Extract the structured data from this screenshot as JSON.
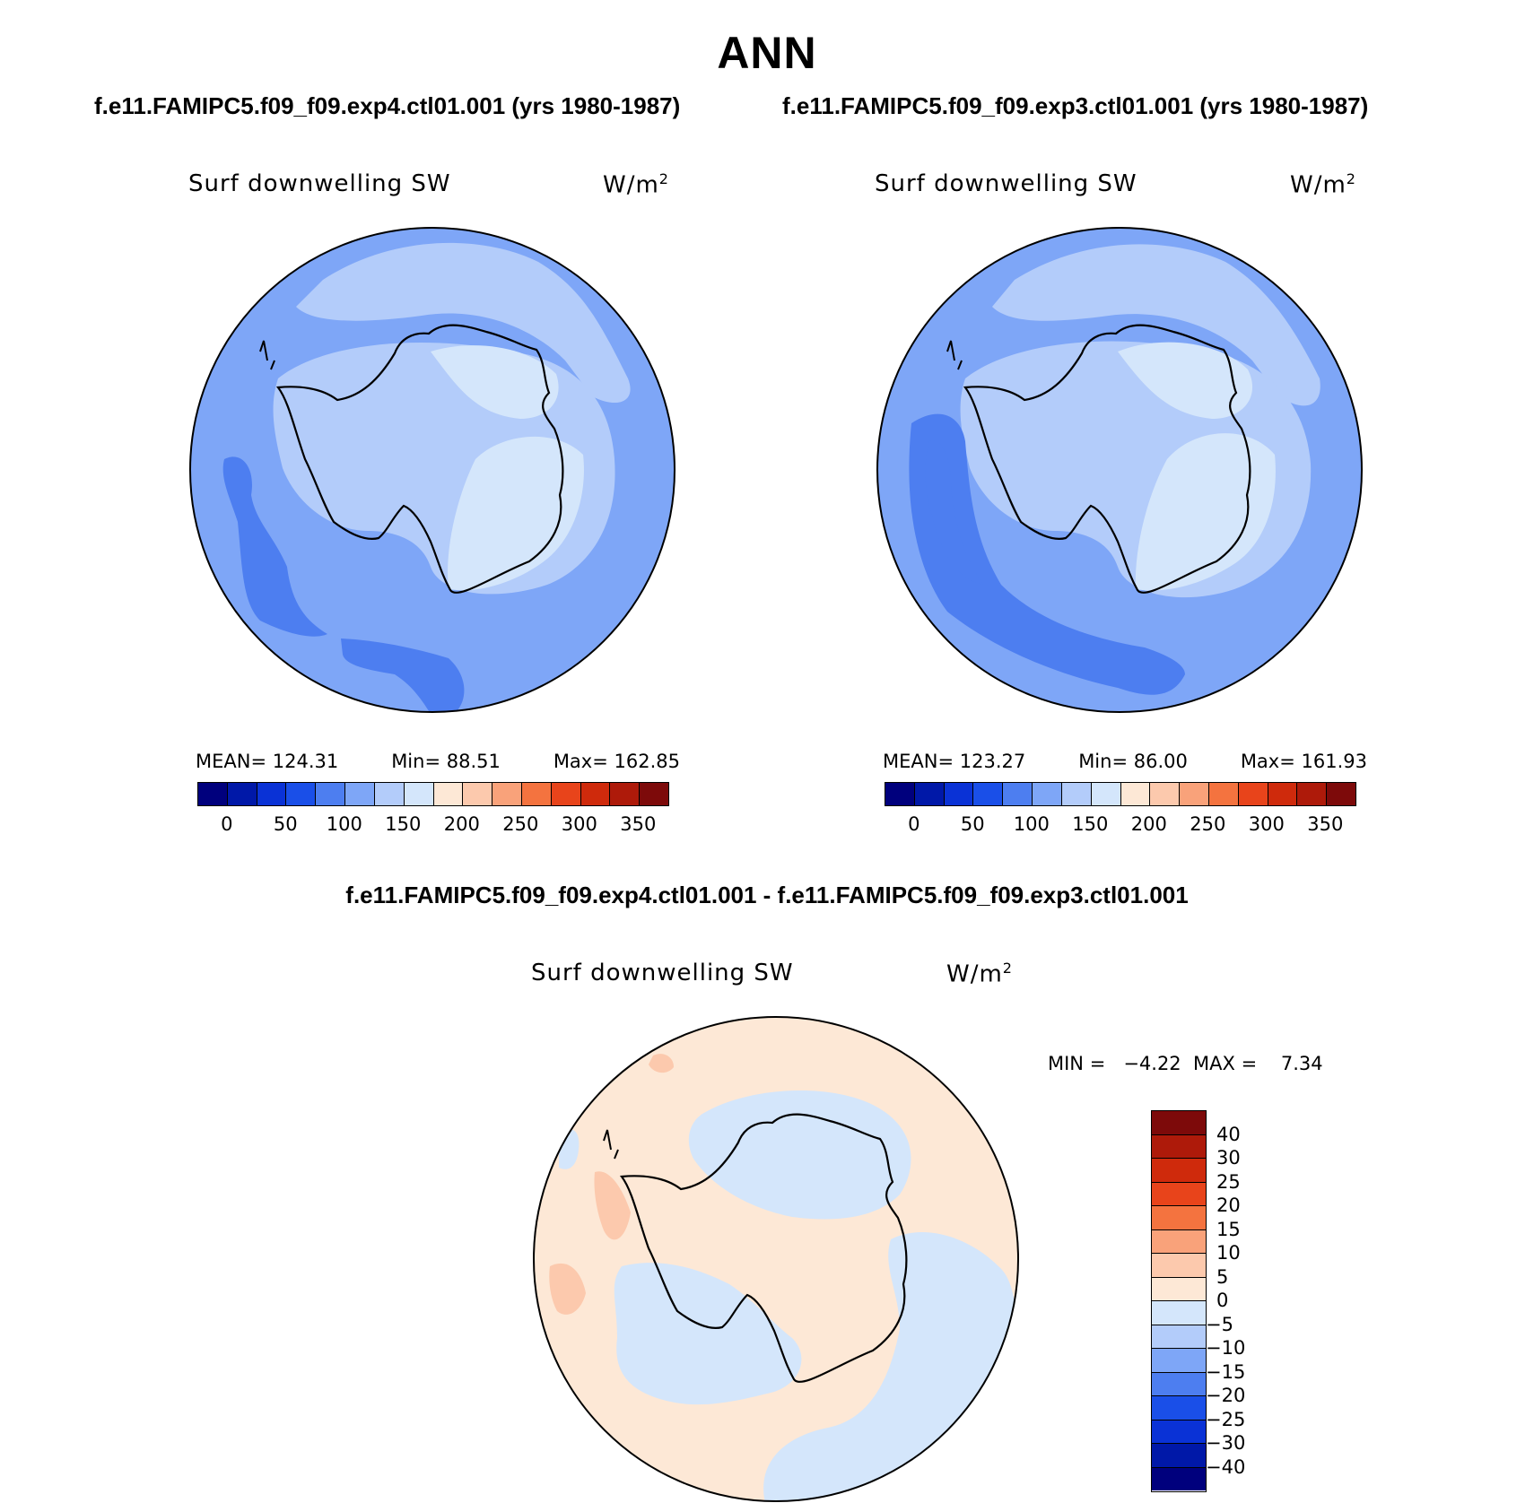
{
  "title": "ANN",
  "panels": [
    {
      "case_title": "f.e11.FAMIPC5.f09_f09.exp4.ctl01.001 (yrs 1980-1987)",
      "variable": "Surf downwelling SW",
      "units": "W/m",
      "units_sup": "2",
      "mean_label": "MEAN=",
      "mean": "124.31",
      "min_label": "Min=",
      "min": "88.51",
      "max_label": "Max=",
      "max": "162.85"
    },
    {
      "case_title": "f.e11.FAMIPC5.f09_f09.exp3.ctl01.001 (yrs 1980-1987)",
      "variable": "Surf downwelling SW",
      "units": "W/m",
      "units_sup": "2",
      "mean_label": "MEAN=",
      "mean": "123.27",
      "min_label": "Min=",
      "min": "86.00",
      "max_label": "Max=",
      "max": "161.93"
    }
  ],
  "diff": {
    "title": "f.e11.FAMIPC5.f09_f09.exp4.ctl01.001 - f.e11.FAMIPC5.f09_f09.exp3.ctl01.001",
    "variable": "Surf downwelling SW",
    "units": "W/m",
    "units_sup": "2",
    "stats": "MIN =   −4.22  MAX =    7.34"
  },
  "abs_colorbar": {
    "labels": [
      "0",
      "50",
      "100",
      "150",
      "200",
      "250",
      "300",
      "350"
    ],
    "colors": [
      "#00007d",
      "#0018a8",
      "#0a32d6",
      "#1a4fe8",
      "#4d7ef0",
      "#7ea6f7",
      "#b3ccfa",
      "#d4e6fb",
      "#fde8d6",
      "#fcc9ad",
      "#f9a27a",
      "#f4733f",
      "#e8441b",
      "#cf2a0c",
      "#ae1a0a",
      "#7d0a0a"
    ]
  },
  "diff_colorbar": {
    "labels": [
      "40",
      "30",
      "25",
      "20",
      "15",
      "10",
      "5",
      "0",
      "−5",
      "−10",
      "−15",
      "−20",
      "−25",
      "−30",
      "−40"
    ],
    "colors_top_to_bottom": [
      "#7d0a0a",
      "#ae1a0a",
      "#cf2a0c",
      "#e8441b",
      "#f4733f",
      "#f9a27a",
      "#fcc9ad",
      "#fde8d6",
      "#d4e6fb",
      "#b3ccfa",
      "#7ea6f7",
      "#4d7ef0",
      "#1a4fe8",
      "#0a32d6",
      "#0018a8",
      "#00007d"
    ]
  }
}
